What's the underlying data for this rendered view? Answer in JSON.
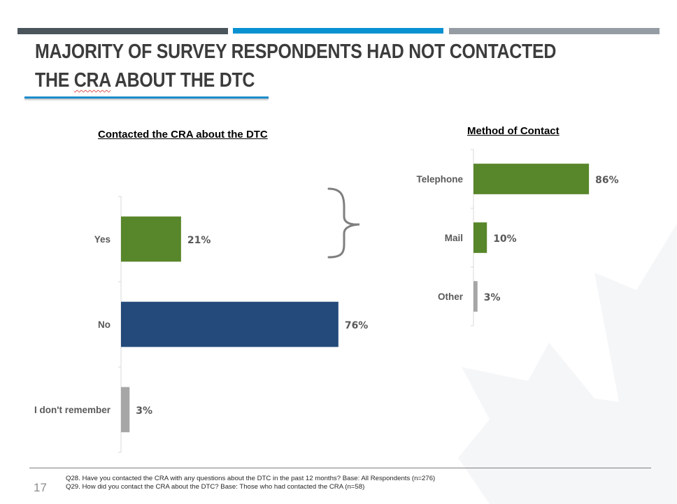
{
  "slide": {
    "title_line1": "MAJORITY OF SURVEY RESPONDENTS HAD NOT CONTACTED",
    "title_line2_pre": "THE ",
    "title_line2_cra": "CRA",
    "title_line2_post": " ABOUT THE DTC",
    "page_number": "17",
    "footnotes": [
      "Q28. Have you contacted the CRA with any questions about the DTC in the past 12 months?  Base: All Respondents (n=276)",
      "Q29. How did you contact the CRA about the DTC?  Base: Those who had contacted the CRA (n=58)"
    ],
    "accent_colors": {
      "topbar_dark": "#4a555c",
      "topbar_blue": "#0891d1",
      "topbar_gray": "#969ca4",
      "title_rule": "#1b8ccc"
    },
    "decorations": {
      "brace_icon": "curly-brace-right",
      "watermark_icon": "maple-leaf"
    }
  },
  "chart_data": [
    {
      "type": "bar",
      "orientation": "horizontal",
      "title": "Contacted the CRA about the DTC",
      "categories": [
        "Yes",
        "No",
        "I don't remember"
      ],
      "values": [
        21,
        76,
        3
      ],
      "value_labels": [
        "21%",
        "76%",
        "3%"
      ],
      "colors": [
        "#58862a",
        "#234a7a",
        "#a6a6a6"
      ],
      "unit": "%",
      "xlabel": "",
      "ylabel": "",
      "xlim": [
        0,
        100
      ],
      "grid": false,
      "legend": "none"
    },
    {
      "type": "bar",
      "orientation": "horizontal",
      "title": "Method of Contact",
      "categories": [
        "Telephone",
        "Mail",
        "Other"
      ],
      "values": [
        86,
        10,
        3
      ],
      "value_labels": [
        "86%",
        "10%",
        "3%"
      ],
      "colors": [
        "#58862a",
        "#58862a",
        "#a6a6a6"
      ],
      "unit": "%",
      "xlabel": "",
      "ylabel": "",
      "xlim": [
        0,
        100
      ],
      "grid": false,
      "legend": "none"
    }
  ]
}
